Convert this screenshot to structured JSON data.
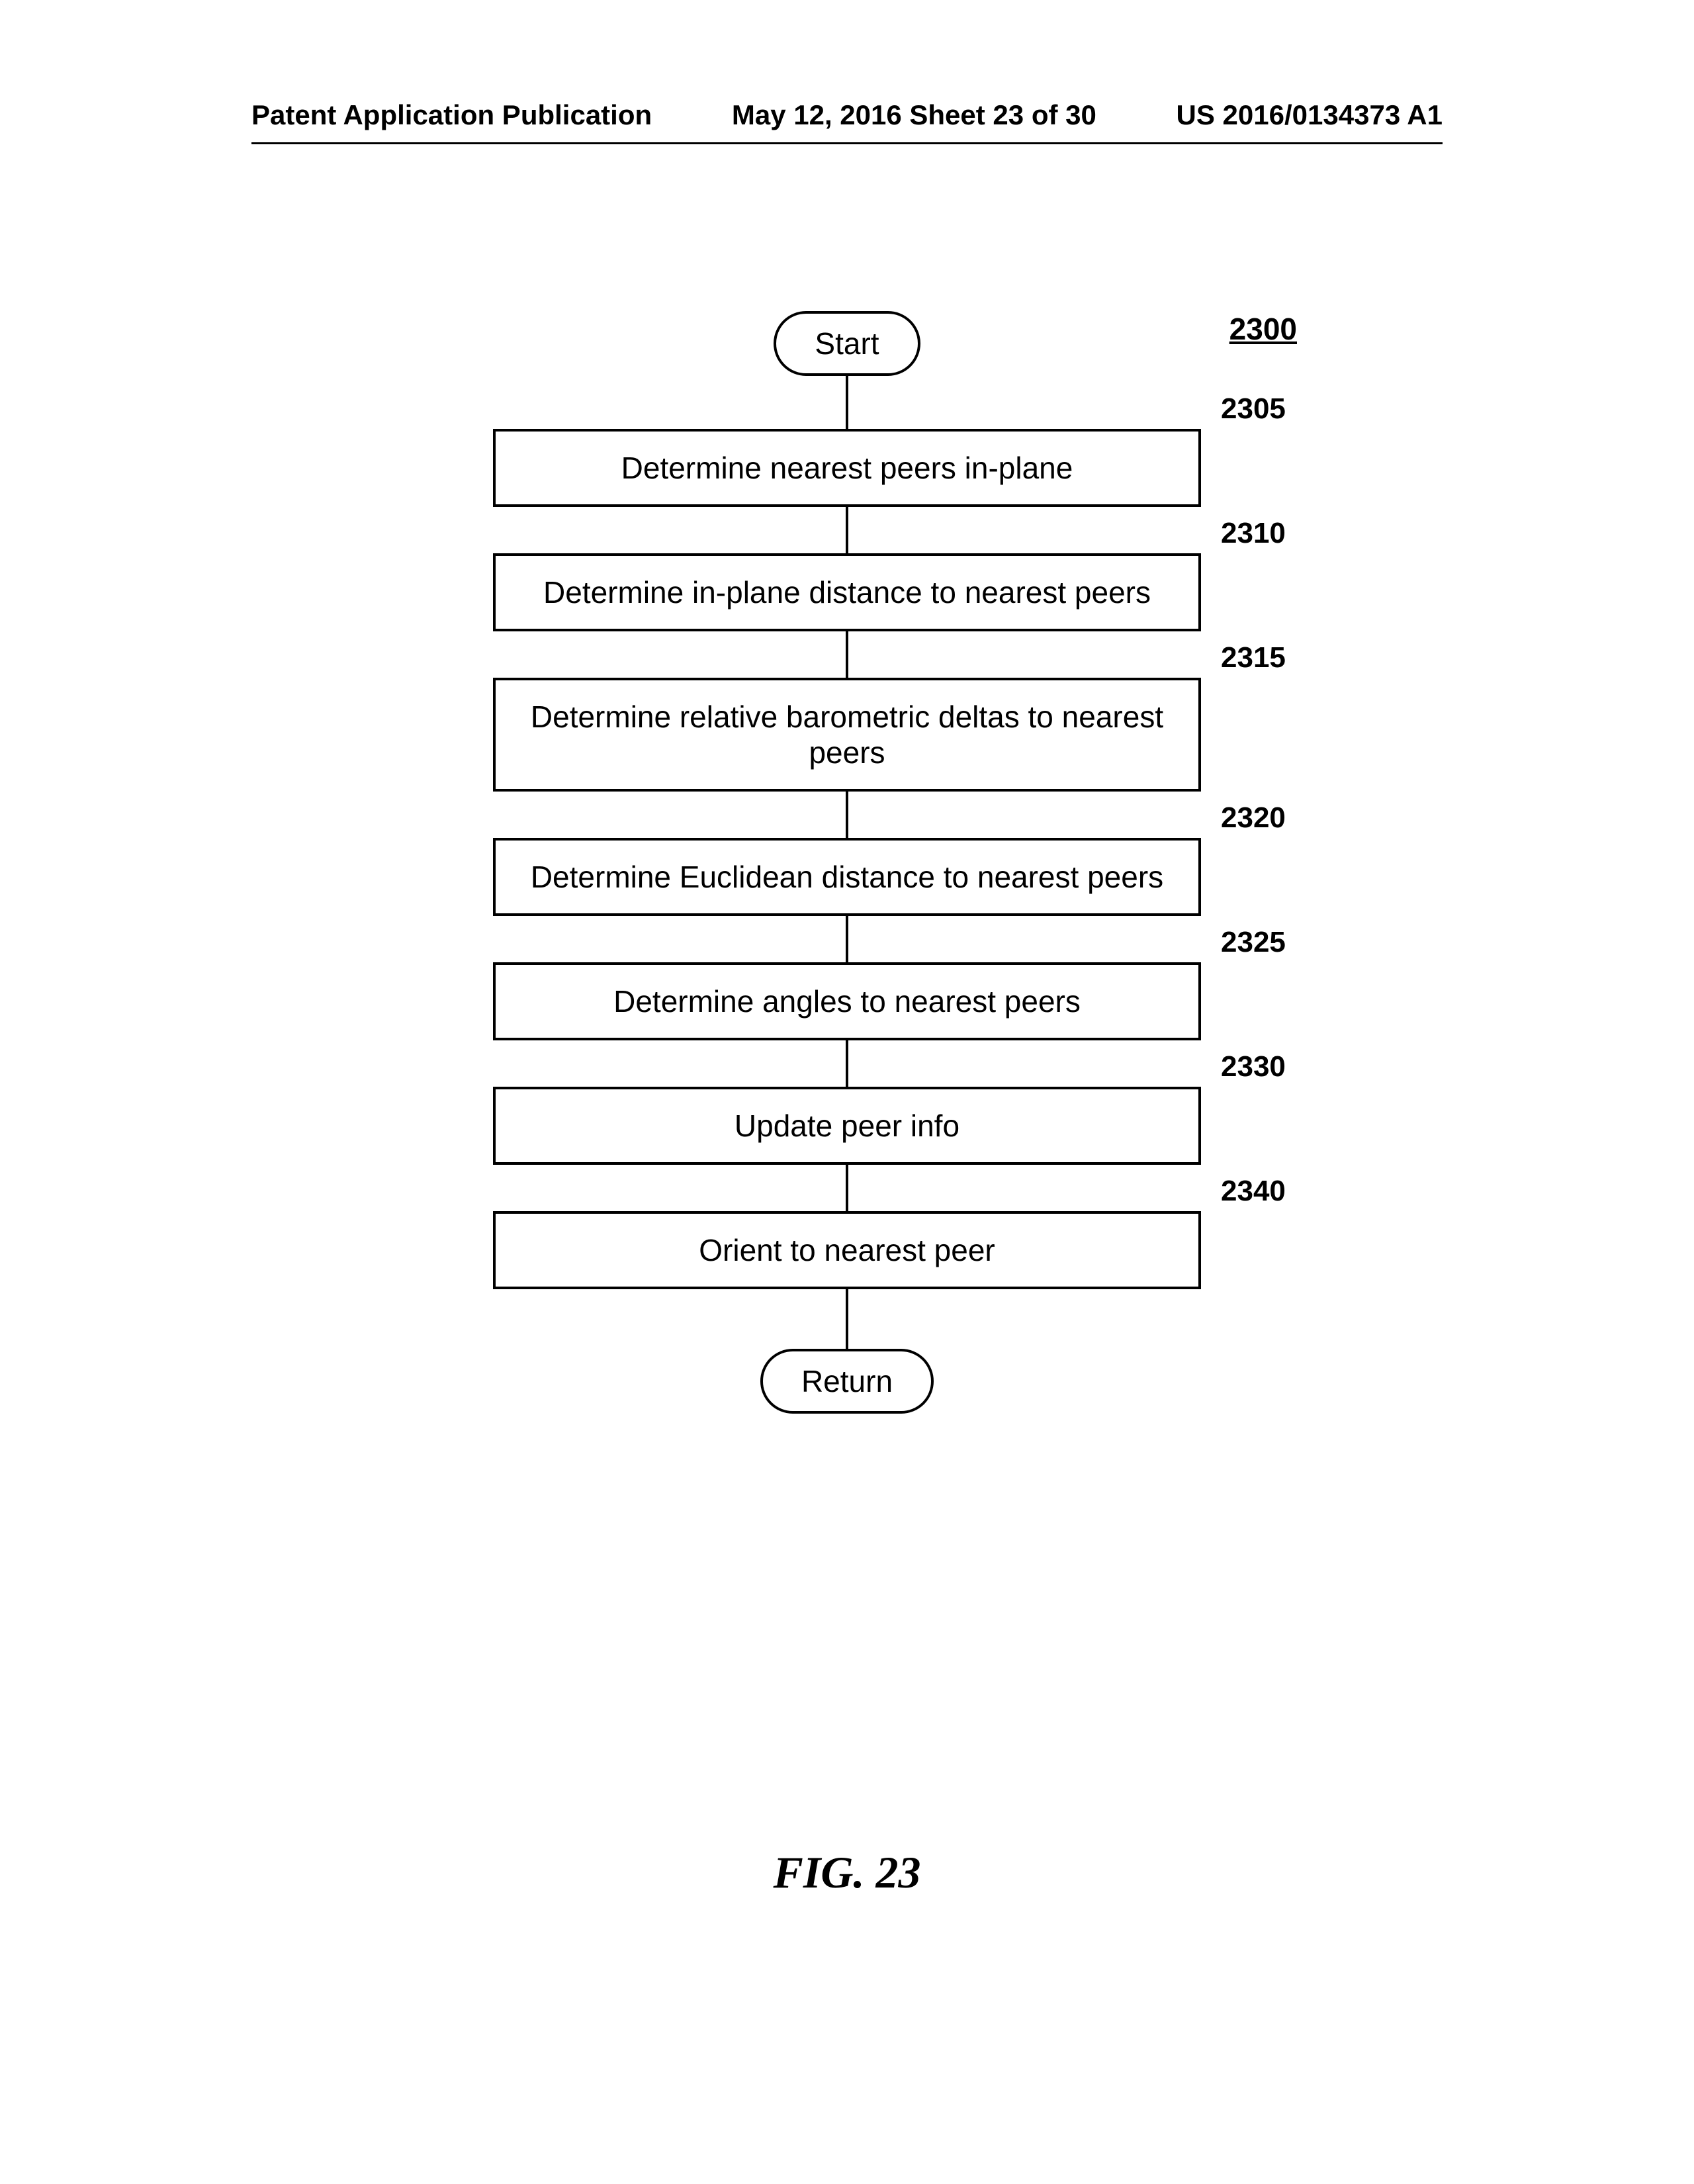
{
  "header": {
    "left": "Patent Application Publication",
    "center": "May 12, 2016  Sheet 23 of 30",
    "right": "US 2016/0134373 A1"
  },
  "flowchart": {
    "main_ref": "2300",
    "start_label": "Start",
    "return_label": "Return",
    "steps": [
      {
        "ref": "2305",
        "text": "Determine nearest peers in-plane",
        "height": 115
      },
      {
        "ref": "2310",
        "text": "Determine in-plane distance to nearest peers",
        "height": 115
      },
      {
        "ref": "2315",
        "text": "Determine relative barometric deltas to nearest peers",
        "height": 155
      },
      {
        "ref": "2320",
        "text": "Determine Euclidean distance to nearest peers",
        "height": 115
      },
      {
        "ref": "2325",
        "text": "Determine angles to nearest peers",
        "height": 115
      },
      {
        "ref": "2330",
        "text": "Update peer info",
        "height": 115
      },
      {
        "ref": "2340",
        "text": "Orient to nearest peer",
        "height": 115
      }
    ],
    "connector_height": 70,
    "connector_height_first": 80,
    "connector_height_last": 90
  },
  "figure_label": "FIG. 23",
  "colors": {
    "background": "#ffffff",
    "line": "#000000",
    "text": "#000000"
  },
  "fonts": {
    "body": "Arial, Helvetica, sans-serif",
    "figure": "\"Times New Roman\", Times, serif",
    "header_size_pt": 32,
    "step_size_pt": 35,
    "ref_size_pt": 33,
    "figure_size_pt": 51
  }
}
